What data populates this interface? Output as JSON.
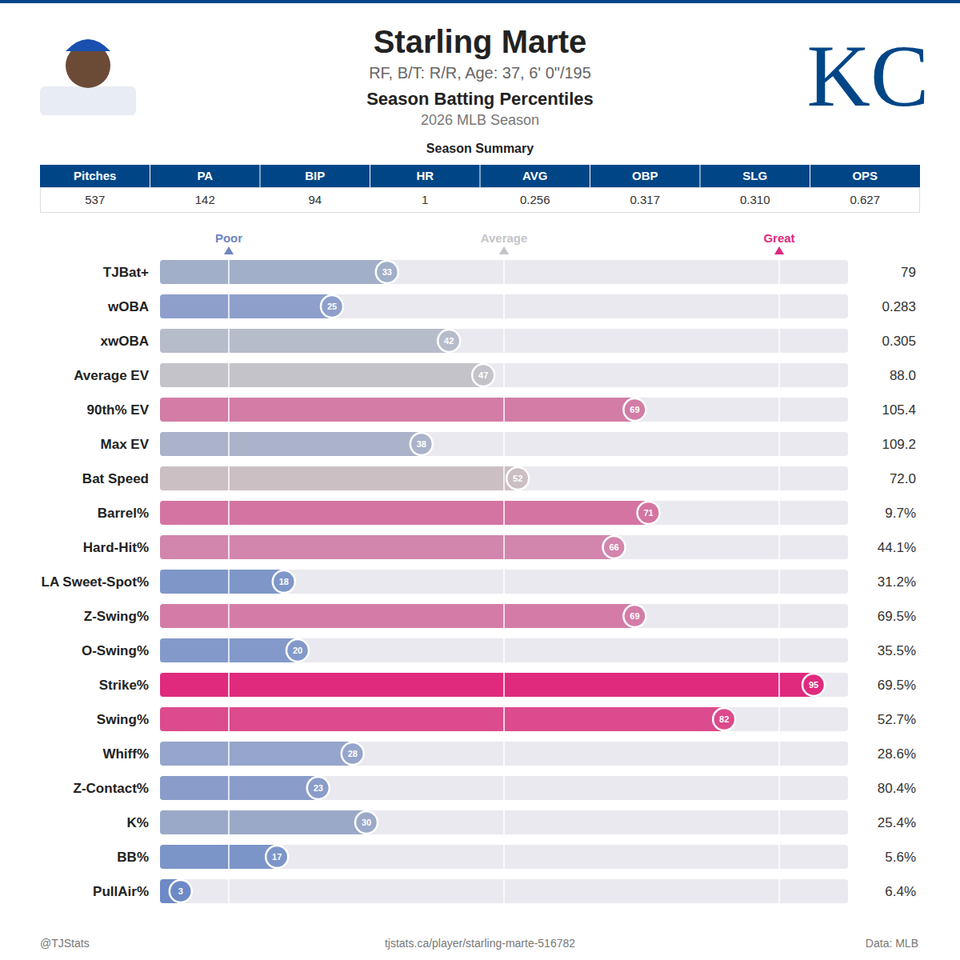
{
  "header": {
    "title": "Starling Marte",
    "subtitle": "RF, B/T: R/R, Age: 37, 6' 0\"/195",
    "heading": "Season Batting Percentiles",
    "season": "2026 MLB Season",
    "logo": "KC"
  },
  "summary": {
    "title": "Season Summary",
    "columns": [
      "Pitches",
      "PA",
      "BIP",
      "HR",
      "AVG",
      "OBP",
      "SLG",
      "OPS"
    ],
    "row": [
      "537",
      "142",
      "94",
      "1",
      "0.256",
      "0.317",
      "0.310",
      "0.627"
    ]
  },
  "chart_data": {
    "type": "bar",
    "orientation": "horizontal",
    "data_labels": true,
    "grid": true,
    "tick_labels": "x",
    "xlim": [
      0,
      100
    ],
    "xticks": [
      {
        "value": 10,
        "label": "Poor"
      },
      {
        "value": 50,
        "label": "Average"
      },
      {
        "value": 90,
        "label": "Great"
      }
    ],
    "tick_colors": [
      "#6f86c0",
      "#c4c4c8",
      "#e0287e"
    ],
    "categories": [
      "TJBat+",
      "wOBA",
      "xwOBA",
      "Average EV",
      "90th% EV",
      "Max EV",
      "Bat Speed",
      "Barrel%",
      "Hard-Hit%",
      "LA Sweet-Spot%",
      "Z-Swing%",
      "O-Swing%",
      "Strike%",
      "Swing%",
      "Whiff%",
      "Z-Contact%",
      "K%",
      "BB%",
      "PullAir%"
    ],
    "values": [
      33,
      25,
      42,
      47,
      69,
      38,
      52,
      71,
      66,
      18,
      69,
      20,
      95,
      82,
      28,
      23,
      30,
      17,
      3
    ],
    "colors": [
      "#a1afc8",
      "#8e9fcb",
      "#b7bccb",
      "#c3c3c9",
      "#d27ca6",
      "#aab3c9",
      "#cbbfc3",
      "#d474a2",
      "#d286ad",
      "#7e97c8",
      "#d47ca7",
      "#8399c9",
      "#df2a7e",
      "#db4b8d",
      "#95a5cb",
      "#8a9cc9",
      "#9ba9c8",
      "#7c95c8",
      "#6d89c6"
    ],
    "stat_labels": [
      "79",
      "0.283",
      "0.305",
      "88.0",
      "105.4",
      "109.2",
      "72.0",
      "9.7%",
      "44.1%",
      "31.2%",
      "69.5%",
      "35.5%",
      "69.5%",
      "52.7%",
      "28.6%",
      "80.4%",
      "25.4%",
      "5.6%",
      "6.4%"
    ]
  },
  "footer": {
    "left": "@TJStats",
    "center": "tjstats.ca/player/starling-marte-516782",
    "right": "Data: MLB"
  }
}
